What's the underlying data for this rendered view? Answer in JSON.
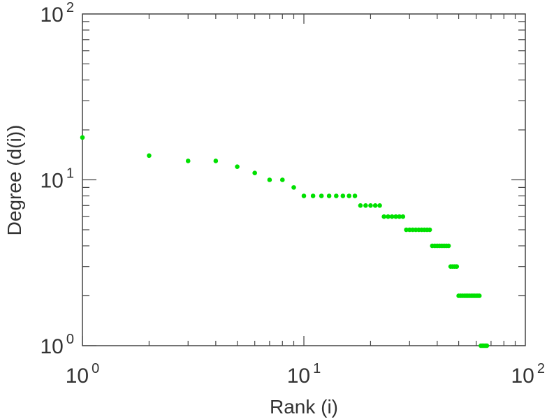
{
  "chart_data": {
    "type": "scatter",
    "xlabel": "Rank (i)",
    "ylabel": "Degree (d(i))",
    "x_scale": "log",
    "y_scale": "log",
    "xlim": [
      1,
      100
    ],
    "ylim": [
      1,
      100
    ],
    "tick_base": "10",
    "x_ticks": [
      {
        "value": 1,
        "exponent": "0"
      },
      {
        "value": 10,
        "exponent": "1"
      },
      {
        "value": 100,
        "exponent": "2"
      }
    ],
    "y_ticks": [
      {
        "value": 1,
        "exponent": "0"
      },
      {
        "value": 10,
        "exponent": "1"
      },
      {
        "value": 100,
        "exponent": "2"
      }
    ],
    "grid": false,
    "marker_color": "#00e000",
    "series": [
      {
        "points": [
          [
            1,
            18
          ],
          [
            2,
            14
          ],
          [
            3,
            13
          ],
          [
            4,
            13
          ],
          [
            5,
            12
          ],
          [
            6,
            11
          ],
          [
            7,
            10
          ],
          [
            8,
            10
          ],
          [
            9,
            9
          ],
          [
            10,
            8
          ],
          [
            11,
            8
          ],
          [
            12,
            8
          ],
          [
            13,
            8
          ],
          [
            14,
            8
          ],
          [
            15,
            8
          ],
          [
            16,
            8
          ],
          [
            17,
            8
          ],
          [
            18,
            7
          ],
          [
            19,
            7
          ],
          [
            20,
            7
          ],
          [
            21,
            7
          ],
          [
            22,
            7
          ],
          [
            23,
            6
          ],
          [
            24,
            6
          ],
          [
            25,
            6
          ],
          [
            26,
            6
          ],
          [
            27,
            6
          ],
          [
            28,
            6
          ],
          [
            29,
            5
          ],
          [
            30,
            5
          ],
          [
            31,
            5
          ],
          [
            32,
            5
          ],
          [
            33,
            5
          ],
          [
            34,
            5
          ],
          [
            35,
            5
          ],
          [
            36,
            5
          ],
          [
            37,
            5
          ],
          [
            38,
            4
          ],
          [
            39,
            4
          ],
          [
            40,
            4
          ],
          [
            41,
            4
          ],
          [
            42,
            4
          ],
          [
            43,
            4
          ],
          [
            44,
            4
          ],
          [
            45,
            4
          ],
          [
            46,
            3
          ],
          [
            47,
            3
          ],
          [
            48,
            3
          ],
          [
            49,
            3
          ],
          [
            50,
            2
          ],
          [
            51,
            2
          ],
          [
            52,
            2
          ],
          [
            53,
            2
          ],
          [
            54,
            2
          ],
          [
            55,
            2
          ],
          [
            56,
            2
          ],
          [
            57,
            2
          ],
          [
            58,
            2
          ],
          [
            59,
            2
          ],
          [
            60,
            2
          ],
          [
            61,
            2
          ],
          [
            62,
            2
          ],
          [
            63,
            1
          ],
          [
            64,
            1
          ],
          [
            65,
            1
          ],
          [
            66,
            1
          ],
          [
            67,
            1
          ]
        ]
      }
    ]
  }
}
